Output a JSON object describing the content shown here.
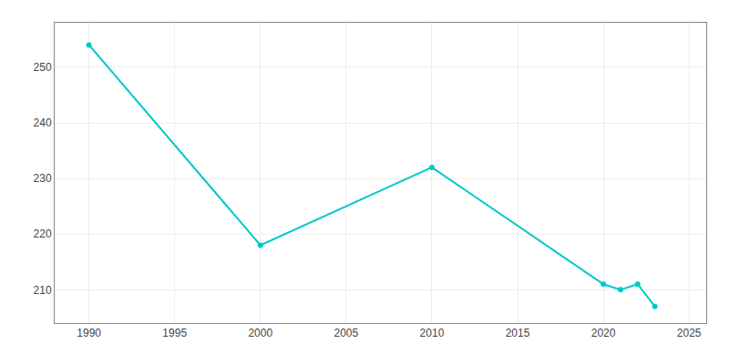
{
  "chart_data": {
    "type": "line",
    "x": [
      1990,
      2000,
      2010,
      2020,
      2021,
      2022,
      2023
    ],
    "values": [
      254,
      218,
      232,
      211,
      210,
      211,
      207
    ],
    "color": "#00c8c8",
    "marker": "circle",
    "xlim": [
      1988,
      2026
    ],
    "xticks": [
      1990,
      1995,
      2000,
      2005,
      2010,
      2015,
      2020,
      2025
    ],
    "ylim": [
      204,
      258
    ],
    "yticks": [
      210,
      220,
      230,
      240,
      250
    ],
    "grid": true
  }
}
